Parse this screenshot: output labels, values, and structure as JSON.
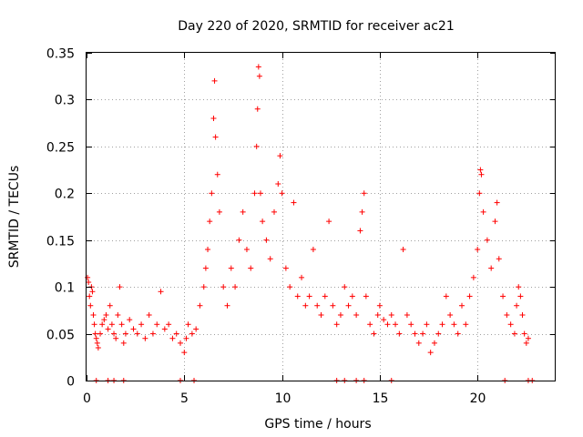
{
  "chart_data": {
    "type": "scatter",
    "title": "Day 220 of 2020, SRMTID for receiver ac21",
    "xlabel": "GPS time / hours",
    "ylabel": "SRMTID / TECUs",
    "xlim": [
      0,
      24
    ],
    "ylim": [
      0,
      0.35
    ],
    "xticks": [
      0,
      5,
      10,
      15,
      20
    ],
    "xtick_labels": [
      "0",
      "5",
      "10",
      "15",
      "20"
    ],
    "yticks": [
      0,
      0.05,
      0.1,
      0.15,
      0.2,
      0.25,
      0.3,
      0.35
    ],
    "ytick_labels": [
      "0",
      "0.05",
      "0.1",
      "0.15",
      "0.2",
      "0.25",
      "0.3",
      "0.35"
    ],
    "grid": true,
    "marker": "+",
    "color": "#ff0000",
    "series": [
      {
        "name": "SRMTID",
        "points": [
          [
            0.05,
            0.11
          ],
          [
            0.1,
            0.105
          ],
          [
            0.15,
            0.09
          ],
          [
            0.2,
            0.08
          ],
          [
            0.25,
            0.1
          ],
          [
            0.3,
            0.095
          ],
          [
            0.35,
            0.07
          ],
          [
            0.4,
            0.06
          ],
          [
            0.45,
            0.05
          ],
          [
            0.5,
            0.045
          ],
          [
            0.55,
            0.04
          ],
          [
            0.6,
            0.035
          ],
          [
            0.7,
            0.05
          ],
          [
            0.8,
            0.06
          ],
          [
            0.9,
            0.065
          ],
          [
            1.0,
            0.07
          ],
          [
            1.1,
            0.055
          ],
          [
            1.2,
            0.08
          ],
          [
            1.3,
            0.06
          ],
          [
            1.4,
            0.05
          ],
          [
            1.5,
            0.045
          ],
          [
            1.6,
            0.07
          ],
          [
            1.7,
            0.1
          ],
          [
            1.8,
            0.06
          ],
          [
            1.9,
            0.04
          ],
          [
            2.0,
            0.05
          ],
          [
            2.2,
            0.065
          ],
          [
            2.4,
            0.055
          ],
          [
            2.6,
            0.05
          ],
          [
            2.8,
            0.06
          ],
          [
            3.0,
            0.045
          ],
          [
            3.2,
            0.07
          ],
          [
            3.4,
            0.05
          ],
          [
            3.6,
            0.06
          ],
          [
            3.8,
            0.095
          ],
          [
            4.0,
            0.055
          ],
          [
            4.2,
            0.06
          ],
          [
            4.4,
            0.045
          ],
          [
            4.6,
            0.05
          ],
          [
            4.8,
            0.04
          ],
          [
            5.0,
            0.03
          ],
          [
            5.1,
            0.045
          ],
          [
            5.2,
            0.06
          ],
          [
            5.4,
            0.05
          ],
          [
            5.6,
            0.055
          ],
          [
            5.8,
            0.08
          ],
          [
            6.0,
            0.1
          ],
          [
            6.1,
            0.12
          ],
          [
            6.2,
            0.14
          ],
          [
            6.3,
            0.17
          ],
          [
            6.4,
            0.2
          ],
          [
            6.5,
            0.28
          ],
          [
            6.55,
            0.32
          ],
          [
            6.6,
            0.26
          ],
          [
            6.7,
            0.22
          ],
          [
            6.8,
            0.18
          ],
          [
            7.0,
            0.1
          ],
          [
            7.2,
            0.08
          ],
          [
            7.4,
            0.12
          ],
          [
            7.6,
            0.1
          ],
          [
            7.8,
            0.15
          ],
          [
            8.0,
            0.18
          ],
          [
            8.2,
            0.14
          ],
          [
            8.4,
            0.12
          ],
          [
            8.6,
            0.2
          ],
          [
            8.7,
            0.25
          ],
          [
            8.75,
            0.29
          ],
          [
            8.8,
            0.335
          ],
          [
            8.85,
            0.325
          ],
          [
            8.9,
            0.2
          ],
          [
            9.0,
            0.17
          ],
          [
            9.2,
            0.15
          ],
          [
            9.4,
            0.13
          ],
          [
            9.6,
            0.18
          ],
          [
            9.8,
            0.21
          ],
          [
            9.9,
            0.24
          ],
          [
            10.0,
            0.2
          ],
          [
            10.2,
            0.12
          ],
          [
            10.4,
            0.1
          ],
          [
            10.6,
            0.19
          ],
          [
            10.8,
            0.09
          ],
          [
            11.0,
            0.11
          ],
          [
            11.2,
            0.08
          ],
          [
            11.4,
            0.09
          ],
          [
            11.6,
            0.14
          ],
          [
            11.8,
            0.08
          ],
          [
            12.0,
            0.07
          ],
          [
            12.2,
            0.09
          ],
          [
            12.4,
            0.17
          ],
          [
            12.6,
            0.08
          ],
          [
            12.8,
            0.06
          ],
          [
            13.0,
            0.07
          ],
          [
            13.2,
            0.1
          ],
          [
            13.4,
            0.08
          ],
          [
            13.6,
            0.09
          ],
          [
            13.8,
            0.07
          ],
          [
            14.0,
            0.16
          ],
          [
            14.1,
            0.18
          ],
          [
            14.2,
            0.2
          ],
          [
            14.3,
            0.09
          ],
          [
            14.5,
            0.06
          ],
          [
            14.7,
            0.05
          ],
          [
            14.9,
            0.07
          ],
          [
            15.0,
            0.08
          ],
          [
            15.2,
            0.065
          ],
          [
            15.4,
            0.06
          ],
          [
            15.6,
            0.07
          ],
          [
            15.8,
            0.06
          ],
          [
            16.0,
            0.05
          ],
          [
            16.2,
            0.14
          ],
          [
            16.4,
            0.07
          ],
          [
            16.6,
            0.06
          ],
          [
            16.8,
            0.05
          ],
          [
            17.0,
            0.04
          ],
          [
            17.2,
            0.05
          ],
          [
            17.4,
            0.06
          ],
          [
            17.6,
            0.03
          ],
          [
            17.8,
            0.04
          ],
          [
            18.0,
            0.05
          ],
          [
            18.2,
            0.06
          ],
          [
            18.4,
            0.09
          ],
          [
            18.6,
            0.07
          ],
          [
            18.8,
            0.06
          ],
          [
            19.0,
            0.05
          ],
          [
            19.2,
            0.08
          ],
          [
            19.4,
            0.06
          ],
          [
            19.6,
            0.09
          ],
          [
            19.8,
            0.11
          ],
          [
            20.0,
            0.14
          ],
          [
            20.1,
            0.2
          ],
          [
            20.15,
            0.225
          ],
          [
            20.2,
            0.22
          ],
          [
            20.3,
            0.18
          ],
          [
            20.5,
            0.15
          ],
          [
            20.7,
            0.12
          ],
          [
            20.9,
            0.17
          ],
          [
            21.0,
            0.19
          ],
          [
            21.1,
            0.13
          ],
          [
            21.3,
            0.09
          ],
          [
            21.5,
            0.07
          ],
          [
            21.7,
            0.06
          ],
          [
            21.9,
            0.05
          ],
          [
            22.0,
            0.08
          ],
          [
            22.1,
            0.1
          ],
          [
            22.2,
            0.09
          ],
          [
            22.3,
            0.07
          ],
          [
            22.4,
            0.05
          ],
          [
            22.5,
            0.04
          ],
          [
            22.6,
            0.045
          ],
          [
            0.5,
            0.0
          ],
          [
            1.1,
            0.0
          ],
          [
            1.4,
            0.0
          ],
          [
            1.9,
            0.0
          ],
          [
            4.8,
            0.0
          ],
          [
            5.5,
            0.0
          ],
          [
            12.8,
            0.0
          ],
          [
            13.2,
            0.0
          ],
          [
            13.8,
            0.0
          ],
          [
            14.2,
            0.0
          ],
          [
            15.6,
            0.0
          ],
          [
            21.4,
            0.0
          ],
          [
            22.6,
            0.0
          ],
          [
            22.8,
            0.0
          ]
        ]
      }
    ]
  }
}
